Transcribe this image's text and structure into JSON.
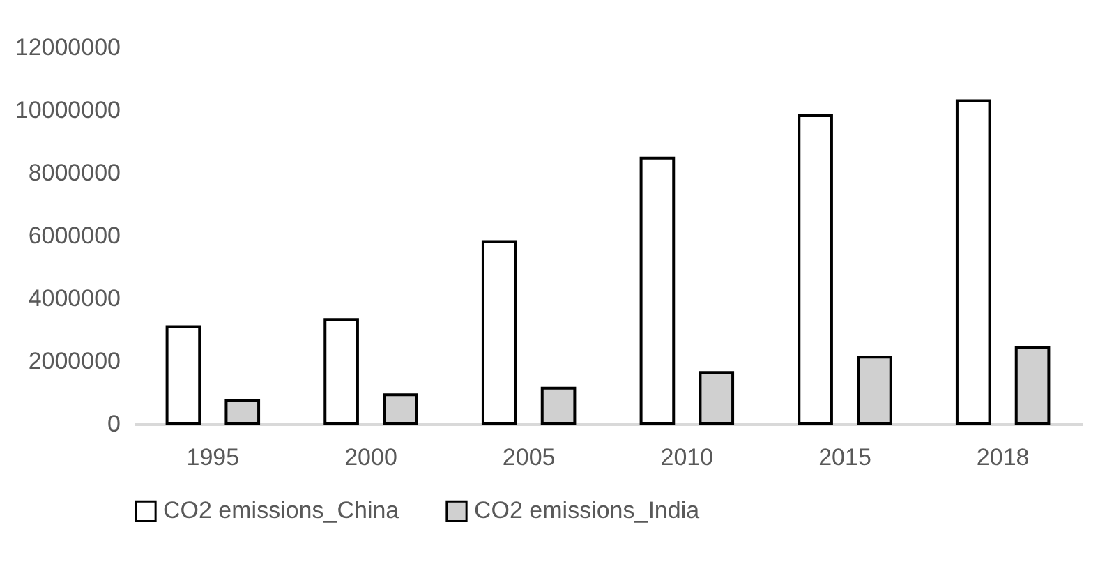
{
  "chart_data": {
    "type": "bar",
    "categories": [
      "1995",
      "2000",
      "2005",
      "2010",
      "2015",
      "2018"
    ],
    "series": [
      {
        "name": "CO2 emissions_China",
        "color": "#ffffff",
        "values": [
          3100000,
          3330000,
          5810000,
          8470000,
          9820000,
          10300000
        ]
      },
      {
        "name": "CO2 emissions_India",
        "color": "#d0d0d0",
        "values": [
          740000,
          930000,
          1140000,
          1640000,
          2130000,
          2420000
        ]
      }
    ],
    "ylim": [
      0,
      12000000
    ],
    "yticks": [
      0,
      2000000,
      4000000,
      6000000,
      8000000,
      10000000,
      12000000
    ],
    "grid": false,
    "legend": "bottom"
  }
}
